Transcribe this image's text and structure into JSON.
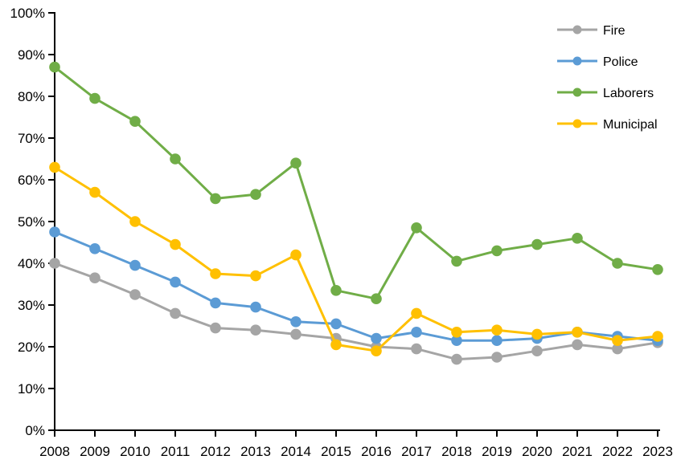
{
  "chart_data": {
    "type": "line",
    "title": "",
    "xlabel": "",
    "ylabel": "",
    "categories": [
      "2008",
      "2009",
      "2010",
      "2011",
      "2012",
      "2013",
      "2014",
      "2015",
      "2016",
      "2017",
      "2018",
      "2019",
      "2020",
      "2021",
      "2022",
      "2023"
    ],
    "series": [
      {
        "name": "Fire",
        "color": "#a5a5a5",
        "values": [
          40,
          36.5,
          32.5,
          28,
          24.5,
          24,
          23,
          22,
          20,
          19.5,
          17,
          17.5,
          19,
          20.5,
          19.5,
          21
        ]
      },
      {
        "name": "Police",
        "color": "#5b9bd5",
        "values": [
          47.5,
          43.5,
          39.5,
          35.5,
          30.5,
          29.5,
          26,
          25.5,
          22,
          23.5,
          21.5,
          21.5,
          22,
          23.5,
          22.5,
          21.5
        ]
      },
      {
        "name": "Laborers",
        "color": "#70ad47",
        "values": [
          87,
          79.5,
          74,
          65,
          55.5,
          56.5,
          64,
          33.5,
          31.5,
          48.5,
          40.5,
          43,
          44.5,
          46,
          40,
          38.5
        ]
      },
      {
        "name": "Municipal",
        "color": "#ffc000",
        "values": [
          63,
          57,
          50,
          44.5,
          37.5,
          37,
          42,
          20.5,
          19,
          28,
          23.5,
          24,
          23,
          23.5,
          21.5,
          22.5
        ]
      }
    ],
    "y_axis": {
      "min": 0,
      "max": 100,
      "step": 10,
      "tick_suffix": "%",
      "tick_labels": [
        "0%",
        "10%",
        "20%",
        "30%",
        "40%",
        "50%",
        "60%",
        "70%",
        "80%",
        "90%",
        "100%"
      ]
    },
    "x_axis": {
      "tick_labels": [
        "2008",
        "2009",
        "2010",
        "2011",
        "2012",
        "2013",
        "2014",
        "2015",
        "2016",
        "2017",
        "2018",
        "2019",
        "2020",
        "2021",
        "2022",
        "2023"
      ]
    },
    "legend": {
      "position": "top-right",
      "items": [
        "Fire",
        "Police",
        "Laborers",
        "Municipal"
      ]
    },
    "grid": false,
    "axis_color": "#000000",
    "background_color": "#ffffff"
  }
}
